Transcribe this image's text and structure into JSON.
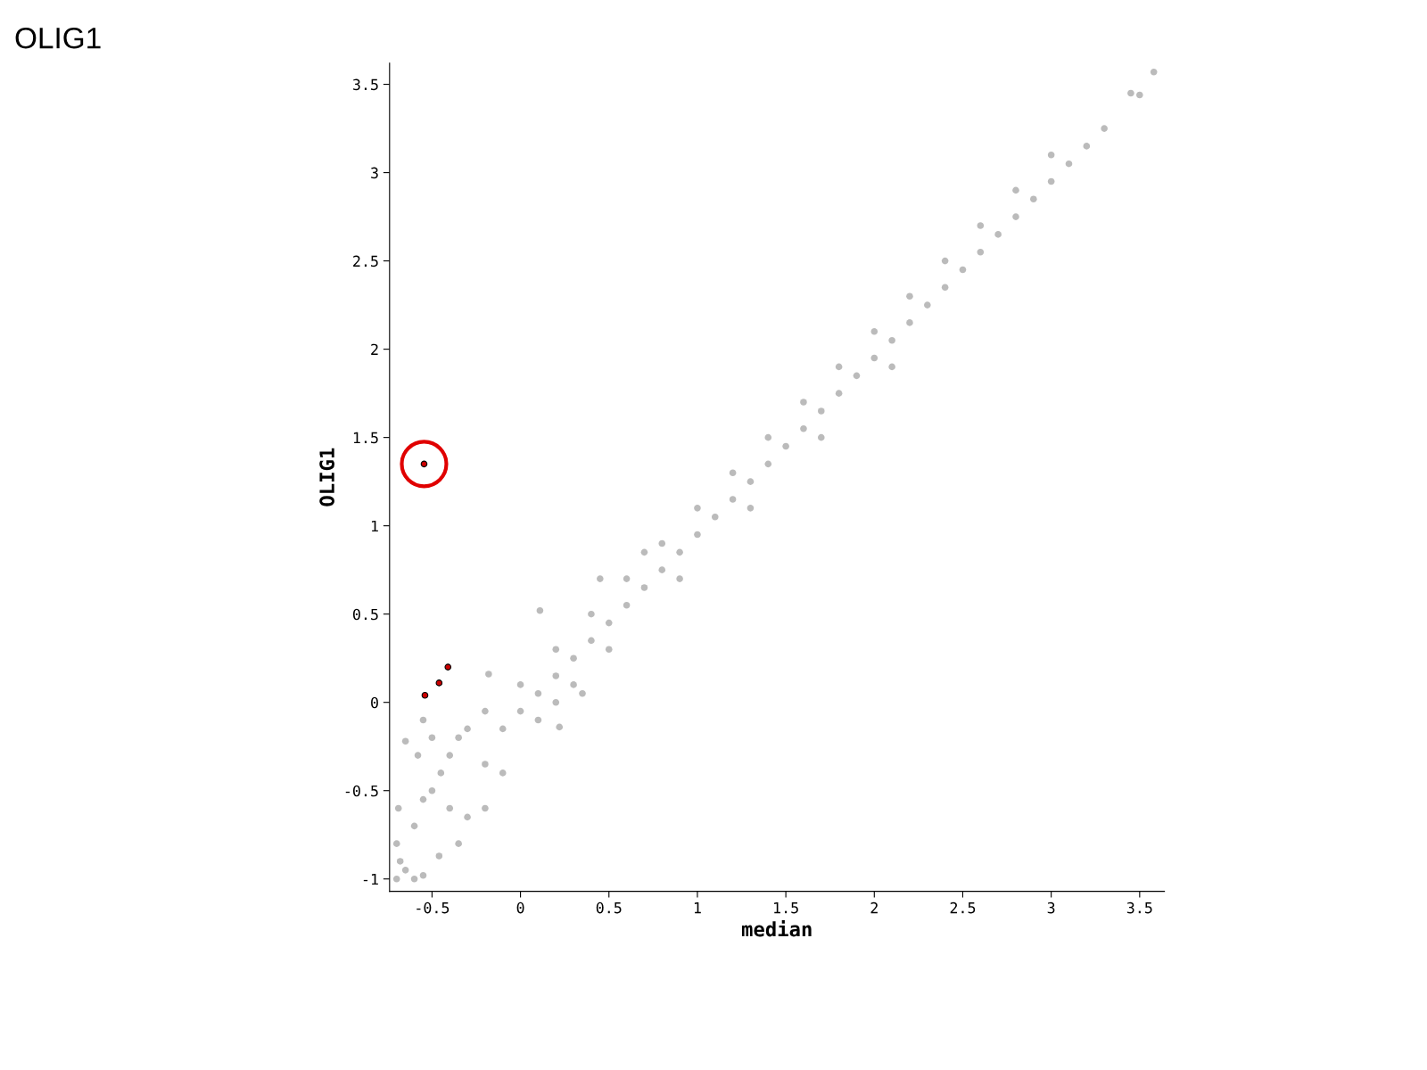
{
  "chart_data": {
    "type": "scatter",
    "title": "OLIG1",
    "xlabel": "median",
    "ylabel": "OLIG1",
    "xlim": [
      -0.74,
      3.64
    ],
    "ylim": [
      -1.07,
      3.62
    ],
    "xticks": [
      -0.5,
      0,
      0.5,
      1,
      1.5,
      2,
      2.5,
      3,
      3.5
    ],
    "yticks": [
      -1,
      -0.5,
      0,
      0.5,
      1,
      1.5,
      2,
      2.5,
      3,
      3.5
    ],
    "grid": false,
    "legend": false,
    "marker": "circle",
    "series": [
      {
        "color": "#bbbbbb",
        "x": [
          -0.7,
          -0.68,
          -0.7,
          -0.69,
          -0.65,
          -0.6,
          -0.55,
          -0.6,
          -0.55,
          -0.5,
          -0.45,
          -0.65,
          -0.55,
          -0.58,
          -0.5,
          -0.4,
          -0.35,
          -0.3,
          -0.2,
          -0.46,
          -0.35,
          -0.3,
          -0.2,
          -0.1,
          0.22,
          0.35,
          -0.18,
          0.11,
          0.45,
          0.7,
          -0.1,
          0,
          0.1,
          0.2,
          0.3,
          0.4,
          0.5,
          0.6,
          0.7,
          0.8,
          0.9,
          1.0,
          1.1,
          1.2,
          1.3,
          1.4,
          1.5,
          1.6,
          1.7,
          1.8,
          1.9,
          2.0,
          2.1,
          2.2,
          2.3,
          2.4,
          2.5,
          2.6,
          2.7,
          2.8,
          2.9,
          3.0,
          3.1,
          3.2,
          3.3,
          3.45,
          3.5,
          3.58,
          0.0,
          0.2,
          0.4,
          0.6,
          0.8,
          1.0,
          1.2,
          1.4,
          1.6,
          1.8,
          2.0,
          2.2,
          2.4,
          2.6,
          2.8,
          3.0,
          0.1,
          0.3,
          0.5,
          0.9,
          1.3,
          1.7,
          2.1,
          0.2,
          -0.2,
          -0.4
        ],
        "values": [
          -1.0,
          -0.9,
          -0.8,
          -0.6,
          -0.95,
          -1.0,
          -0.98,
          -0.7,
          -0.55,
          -0.5,
          -0.4,
          -0.22,
          -0.1,
          -0.3,
          -0.2,
          -0.3,
          -0.2,
          -0.15,
          -0.05,
          -0.87,
          -0.8,
          -0.65,
          -0.6,
          -0.4,
          -0.14,
          0.05,
          0.16,
          0.52,
          0.7,
          0.85,
          -0.15,
          -0.05,
          0.05,
          0.15,
          0.25,
          0.35,
          0.45,
          0.55,
          0.65,
          0.75,
          0.85,
          0.95,
          1.05,
          1.15,
          1.25,
          1.35,
          1.45,
          1.55,
          1.65,
          1.75,
          1.85,
          1.95,
          2.05,
          2.15,
          2.25,
          2.35,
          2.45,
          2.55,
          2.65,
          2.75,
          2.85,
          2.95,
          3.05,
          3.15,
          3.25,
          3.45,
          3.44,
          3.57,
          0.1,
          0.3,
          0.5,
          0.7,
          0.9,
          1.1,
          1.3,
          1.5,
          1.7,
          1.9,
          2.1,
          2.3,
          2.5,
          2.7,
          2.9,
          3.1,
          -0.1,
          0.1,
          0.3,
          0.7,
          1.1,
          1.5,
          1.9,
          0.0,
          -0.35,
          -0.6
        ]
      },
      {
        "color": "#cc0000",
        "x": [
          -0.545,
          -0.41,
          -0.46,
          -0.54
        ],
        "values": [
          1.35,
          0.2,
          0.11,
          0.04
        ]
      }
    ]
  }
}
